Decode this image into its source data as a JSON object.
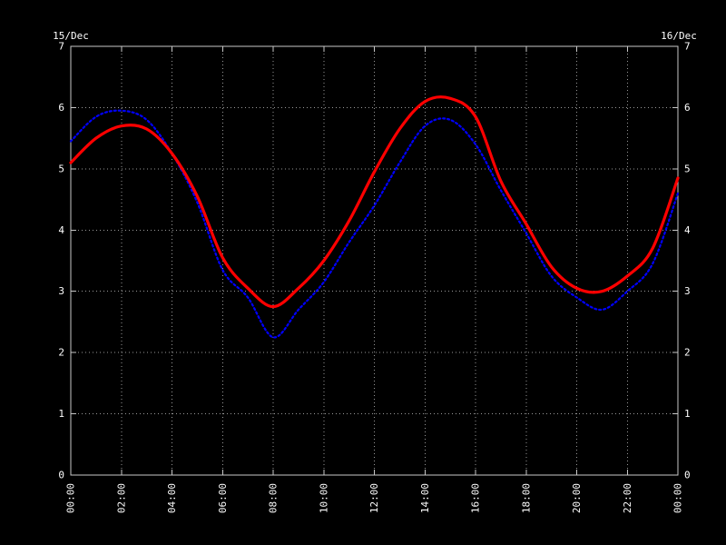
{
  "dates": {
    "left": "15/Dec",
    "right": "16/Dec"
  },
  "colors": {
    "background": "#000000",
    "grid": "#999999",
    "border": "#c8c8c8",
    "text": "#ffffff",
    "series_day1": "#ff0000",
    "series_day2": "#0000ff"
  },
  "chart_data": {
    "type": "line",
    "title": "",
    "xlabel": "",
    "ylabel": "",
    "grid": "dotted",
    "legend": "none",
    "y_axis_both_sides": true,
    "xlim": [
      0,
      24
    ],
    "ylim": [
      0,
      7
    ],
    "x_tick_hours": [
      0,
      2,
      4,
      6,
      8,
      10,
      12,
      14,
      16,
      18,
      20,
      22,
      24
    ],
    "x_tick_labels": [
      "00:00",
      "02:00",
      "04:00",
      "06:00",
      "08:00",
      "10:00",
      "12:00",
      "14:00",
      "16:00",
      "18:00",
      "20:00",
      "22:00",
      "00:00"
    ],
    "y_ticks": [
      0,
      1,
      2,
      3,
      4,
      5,
      6,
      7
    ],
    "sample_hours": [
      0,
      1,
      2,
      3,
      4,
      5,
      6,
      7,
      8,
      9,
      10,
      11,
      12,
      13,
      14,
      15,
      16,
      17,
      18,
      19,
      20,
      21,
      22,
      23,
      24
    ],
    "series": [
      {
        "name": "15/Dec",
        "color": "#ff0000",
        "line_style": "solid",
        "values": [
          5.1,
          5.5,
          5.7,
          5.65,
          5.25,
          4.55,
          3.55,
          3.05,
          2.75,
          3.05,
          3.5,
          4.15,
          4.95,
          5.65,
          6.1,
          6.15,
          5.85,
          4.8,
          4.1,
          3.4,
          3.05,
          3.0,
          3.25,
          3.7,
          4.85
        ]
      },
      {
        "name": "16/Dec",
        "color": "#0000ff",
        "line_style": "dotted",
        "values": [
          5.45,
          5.85,
          5.95,
          5.8,
          5.25,
          4.45,
          3.35,
          2.9,
          2.25,
          2.7,
          3.15,
          3.8,
          4.4,
          5.1,
          5.7,
          5.8,
          5.4,
          4.65,
          3.95,
          3.25,
          2.9,
          2.7,
          3.0,
          3.45,
          4.6
        ]
      }
    ]
  }
}
